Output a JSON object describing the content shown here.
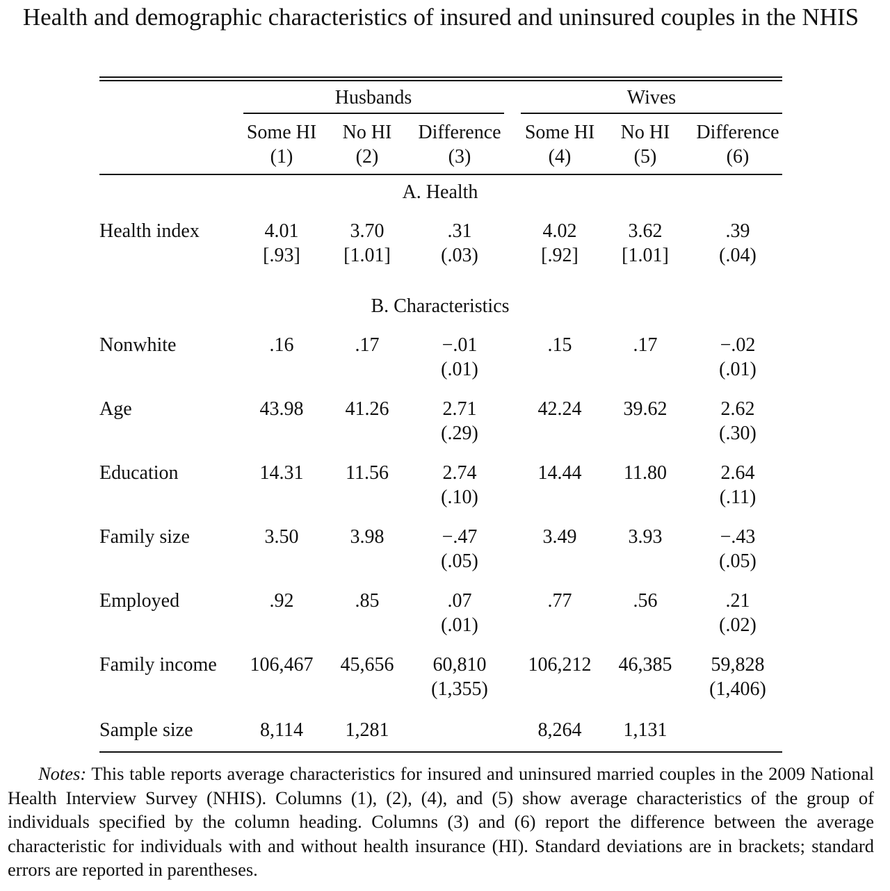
{
  "title": "Health and demographic characteristics of insured and uninsured couples in the NHIS",
  "table": {
    "group_headers": [
      "Husbands",
      "Wives"
    ],
    "columns": [
      {
        "label": "Some HI",
        "num": "(1)"
      },
      {
        "label": "No HI",
        "num": "(2)"
      },
      {
        "label": "Difference",
        "num": "(3)"
      },
      {
        "label": "Some HI",
        "num": "(4)"
      },
      {
        "label": "No HI",
        "num": "(5)"
      },
      {
        "label": "Difference",
        "num": "(6)"
      }
    ],
    "panel_a": "A. Health",
    "panel_b": "B. Characteristics",
    "rows": [
      {
        "label": "Health index",
        "main": [
          "4.01",
          "3.70",
          ".31",
          "4.02",
          "3.62",
          ".39"
        ],
        "sub": [
          "[.93]",
          "[1.01]",
          "(.03)",
          "[.92]",
          "[1.01]",
          "(.04)"
        ]
      },
      {
        "label": "Nonwhite",
        "main": [
          ".16",
          ".17",
          "−.01",
          ".15",
          ".17",
          "−.02"
        ],
        "sub": [
          "",
          "",
          "(.01)",
          "",
          "",
          "(.01)"
        ]
      },
      {
        "label": "Age",
        "main": [
          "43.98",
          "41.26",
          "2.71",
          "42.24",
          "39.62",
          "2.62"
        ],
        "sub": [
          "",
          "",
          "(.29)",
          "",
          "",
          "(.30)"
        ]
      },
      {
        "label": "Education",
        "main": [
          "14.31",
          "11.56",
          "2.74",
          "14.44",
          "11.80",
          "2.64"
        ],
        "sub": [
          "",
          "",
          "(.10)",
          "",
          "",
          "(.11)"
        ]
      },
      {
        "label": "Family size",
        "main": [
          "3.50",
          "3.98",
          "−.47",
          "3.49",
          "3.93",
          "−.43"
        ],
        "sub": [
          "",
          "",
          "(.05)",
          "",
          "",
          "(.05)"
        ]
      },
      {
        "label": "Employed",
        "main": [
          ".92",
          ".85",
          ".07",
          ".77",
          ".56",
          ".21"
        ],
        "sub": [
          "",
          "",
          "(.01)",
          "",
          "",
          "(.02)"
        ]
      },
      {
        "label": "Family income",
        "main": [
          "106,467",
          "45,656",
          "60,810",
          "106,212",
          "46,385",
          "59,828"
        ],
        "sub": [
          "",
          "",
          "(1,355)",
          "",
          "",
          "(1,406)"
        ]
      },
      {
        "label": "Sample size",
        "main": [
          "8,114",
          "1,281",
          "",
          "8,264",
          "1,131",
          ""
        ],
        "sub": [
          "",
          "",
          "",
          "",
          "",
          ""
        ]
      }
    ]
  },
  "notes": {
    "lead": "Notes:",
    "text": "This table reports average characteristics for insured and uninsured married couples in the 2009 National Health Interview Survey (NHIS). Columns (1), (2), (4), and (5) show average characteristics of the group of individuals specified by the column heading. Columns (3) and (6) report the difference between the average characteristic for individuals with and without health insurance (HI). Standard deviations are in brackets; standard errors are reported in parentheses."
  }
}
